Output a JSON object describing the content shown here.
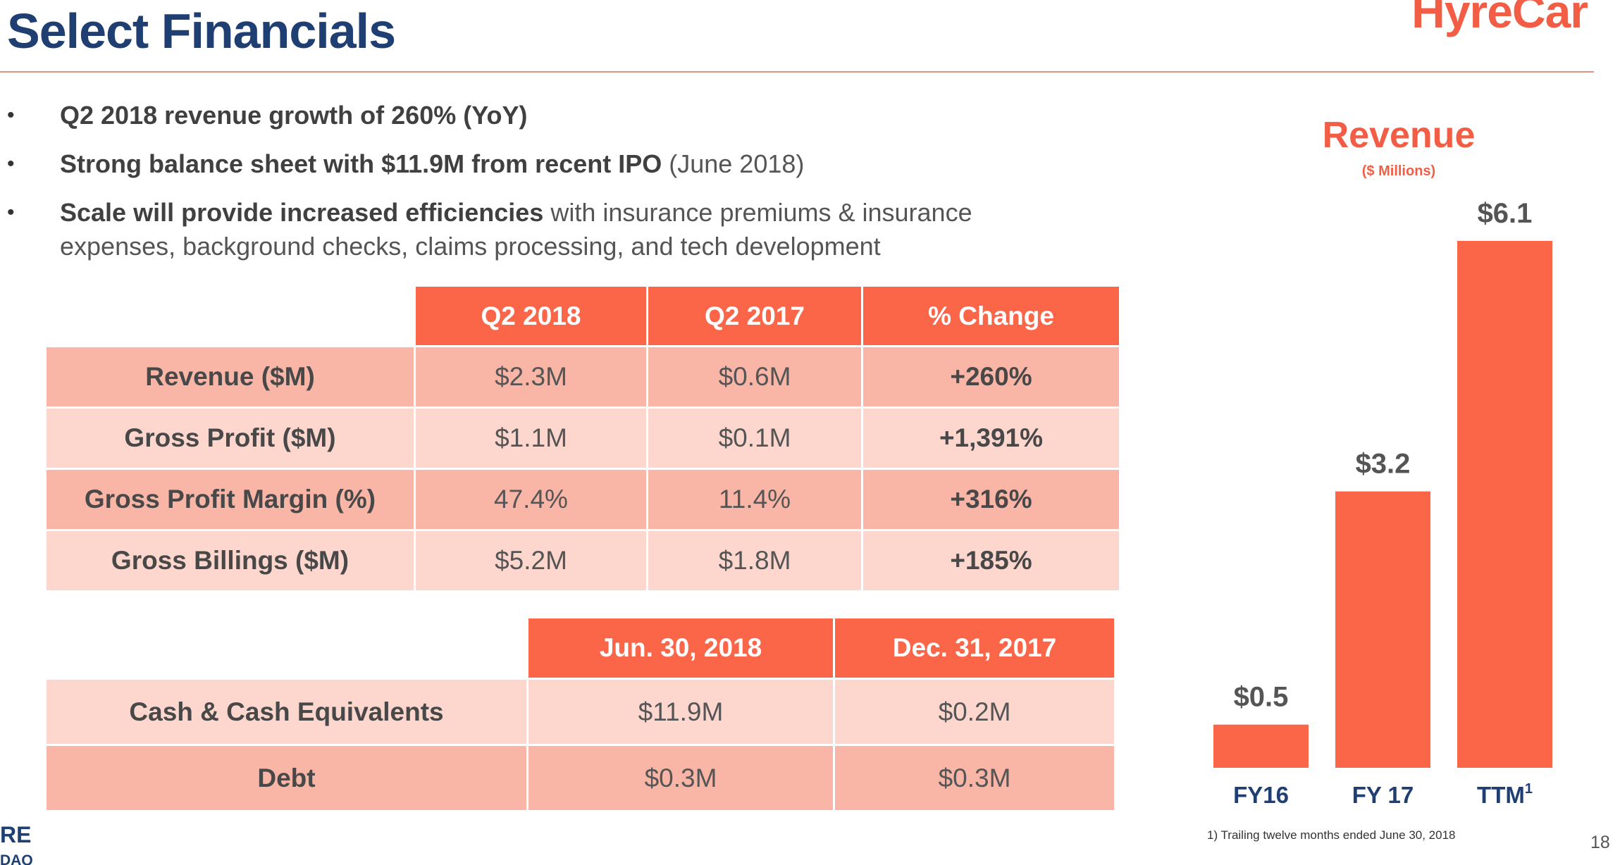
{
  "header": {
    "title": "Select Financials",
    "logo": "HyreCar"
  },
  "bullets": [
    {
      "bold": "Q2 2018 revenue growth of 260% (YoY)",
      "rest": ""
    },
    {
      "bold": "Strong balance sheet with $11.9M from recent IPO",
      "rest": " (June 2018)"
    },
    {
      "bold": "Scale will provide increased efficiencies",
      "rest": " with insurance premiums & insurance expenses, background checks, claims processing, and tech development"
    }
  ],
  "table1": {
    "headers": [
      "Q2 2018",
      "Q2 2017",
      "% Change"
    ],
    "rows": [
      {
        "label": "Revenue ($M)",
        "a": "$2.3M",
        "b": "$0.6M",
        "change": "+260%"
      },
      {
        "label": "Gross Profit ($M)",
        "a": "$1.1M",
        "b": "$0.1M",
        "change": "+1,391%"
      },
      {
        "label": "Gross Profit Margin (%)",
        "a": "47.4%",
        "b": "11.4%",
        "change": "+316%"
      },
      {
        "label": "Gross Billings ($M)",
        "a": "$5.2M",
        "b": "$1.8M",
        "change": "+185%"
      }
    ]
  },
  "table2": {
    "headers": [
      "Jun. 30, 2018",
      "Dec. 31, 2017"
    ],
    "rows": [
      {
        "label": "Cash & Cash Equivalents",
        "a": "$11.9M",
        "b": "$0.2M"
      },
      {
        "label": "Debt",
        "a": "$0.3M",
        "b": "$0.3M"
      }
    ]
  },
  "chart_data": {
    "type": "bar",
    "title": "Revenue",
    "subtitle": "($ Millions)",
    "categories": [
      "FY16",
      "FY 17",
      "TTM"
    ],
    "category_superscripts": [
      "",
      "",
      "1"
    ],
    "values": [
      0.5,
      3.2,
      6.1
    ],
    "data_labels": [
      "$0.5",
      "$3.2",
      "$6.1"
    ],
    "xlabel": "",
    "ylabel": "",
    "ylim": [
      0,
      6.1
    ],
    "grid": false,
    "bar_color": "#fb6548",
    "label_color": "#555555",
    "category_color": "#1f3f73"
  },
  "footnote": "1) Trailing twelve months ended June 30, 2018",
  "page_number": "18",
  "cut_text": {
    "line1": "RE",
    "line2": "DAQ"
  },
  "colors": {
    "accent": "#f15d45",
    "header_fill": "#fb6548",
    "title": "#1f3f73",
    "row_dark": "#f9b5a6",
    "row_light": "#fdd7ce"
  }
}
